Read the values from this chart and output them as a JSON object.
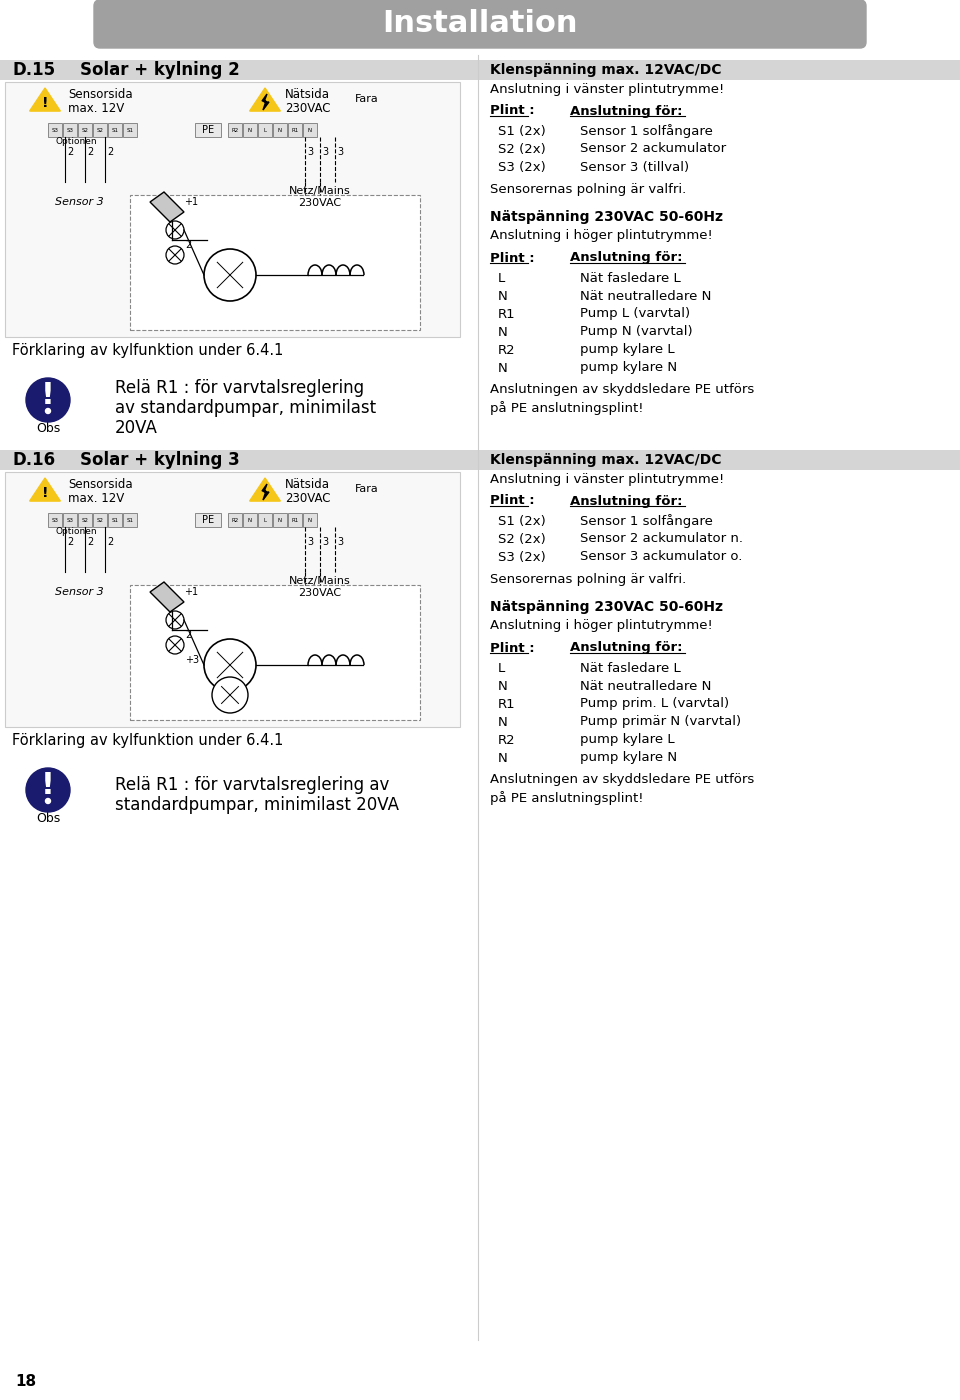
{
  "title": "Installation",
  "title_bg": "#a0a0a0",
  "title_color": "#ffffff",
  "section1_label": "D.15",
  "section1_title": "Solar + kylning 2",
  "section2_label": "D.16",
  "section2_title": "Solar + kylning 3",
  "obs_color": "#1a1a6e",
  "white": "#ffffff",
  "black": "#000000",
  "page_number": "18",
  "obs1_text_line1": "Relä R1 : för varvtalsreglering",
  "obs1_text_line2": "av standardpumpar, minimilast",
  "obs1_text_line3": "20VA",
  "obs2_text_line1": "Relä R1 : för varvtalsreglering av",
  "obs2_text_line2": "standardpumpar, minimilast 20VA",
  "foerklaring": "Förklaring av kylfunktion under 6.4.1",
  "right_col_s15_title": "Klenspänning max. 12VAC/DC",
  "right_col_s15_line1": "Anslutning i vänster plintutrymme!",
  "right_col_s15_plint": "Plint :",
  "right_col_s15_ansfor": "Anslutning för:",
  "right_col_s15_rows": [
    [
      "S1 (2x)",
      "Sensor 1 solfångare"
    ],
    [
      "S2 (2x)",
      "Sensor 2 ackumulator"
    ],
    [
      "S3 (2x)",
      "Sensor 3 (tillval)"
    ]
  ],
  "right_col_s15_sens": "Sensorernas polning är valfri.",
  "right_col_s15_nat_title": "Nätspänning 230VAC 50-60Hz",
  "right_col_s15_nat_line1": "Anslutning i höger plintutrymme!",
  "right_col_s15_nat_plint": "Plint :",
  "right_col_s15_nat_ansfor": "Anslutning för:",
  "right_col_s15_nat_rows": [
    [
      "L",
      "Nät fasledare L"
    ],
    [
      "N",
      "Nät neutralledare N"
    ],
    [
      "R1",
      "Pump L (varvtal)"
    ],
    [
      "N",
      "Pump N (varvtal)"
    ],
    [
      "R2",
      "pump kylare L"
    ],
    [
      "N",
      "pump kylare N"
    ]
  ],
  "right_col_s15_pe": "Anslutningen av skyddsledare PE utförs",
  "right_col_s15_pe2": "på PE anslutningsplint!",
  "right_col_s16_title": "Klenspänning max. 12VAC/DC",
  "right_col_s16_line1": "Anslutning i vänster plintutrymme!",
  "right_col_s16_plint": "Plint :",
  "right_col_s16_ansfor": "Anslutning för:",
  "right_col_s16_rows": [
    [
      "S1 (2x)",
      "Sensor 1 solfångare"
    ],
    [
      "S2 (2x)",
      "Sensor 2 ackumulator n."
    ],
    [
      "S3 (2x)",
      "Sensor 3 ackumulator o."
    ]
  ],
  "right_col_s16_sens": "Sensorernas polning är valfri.",
  "right_col_s16_nat_title": "Nätspänning 230VAC 50-60Hz",
  "right_col_s16_nat_line1": "Anslutning i höger plintutrymme!",
  "right_col_s16_nat_plint": "Plint :",
  "right_col_s16_nat_ansfor": "Anslutning för:",
  "right_col_s16_nat_rows": [
    [
      "L",
      "Nät fasledare L"
    ],
    [
      "N",
      "Nät neutralledare N"
    ],
    [
      "R1",
      "Pump prim. L (varvtal)"
    ],
    [
      "N",
      "Pump primär N (varvtal)"
    ],
    [
      "R2",
      "pump kylare L"
    ],
    [
      "N",
      "pump kylare N"
    ]
  ],
  "right_col_s16_pe": "Anslutningen av skyddsledare PE utförs",
  "right_col_s16_pe2": "på PE anslutningsplint!",
  "sensorsida": "Sensorsida",
  "natsida": "Nätsida",
  "max12v": "max. 12V",
  "v230vac": "230VAC",
  "fara": "Fara",
  "obs_label": "Obs",
  "sensor3": "Sensor 3",
  "optionen": "Optionen"
}
